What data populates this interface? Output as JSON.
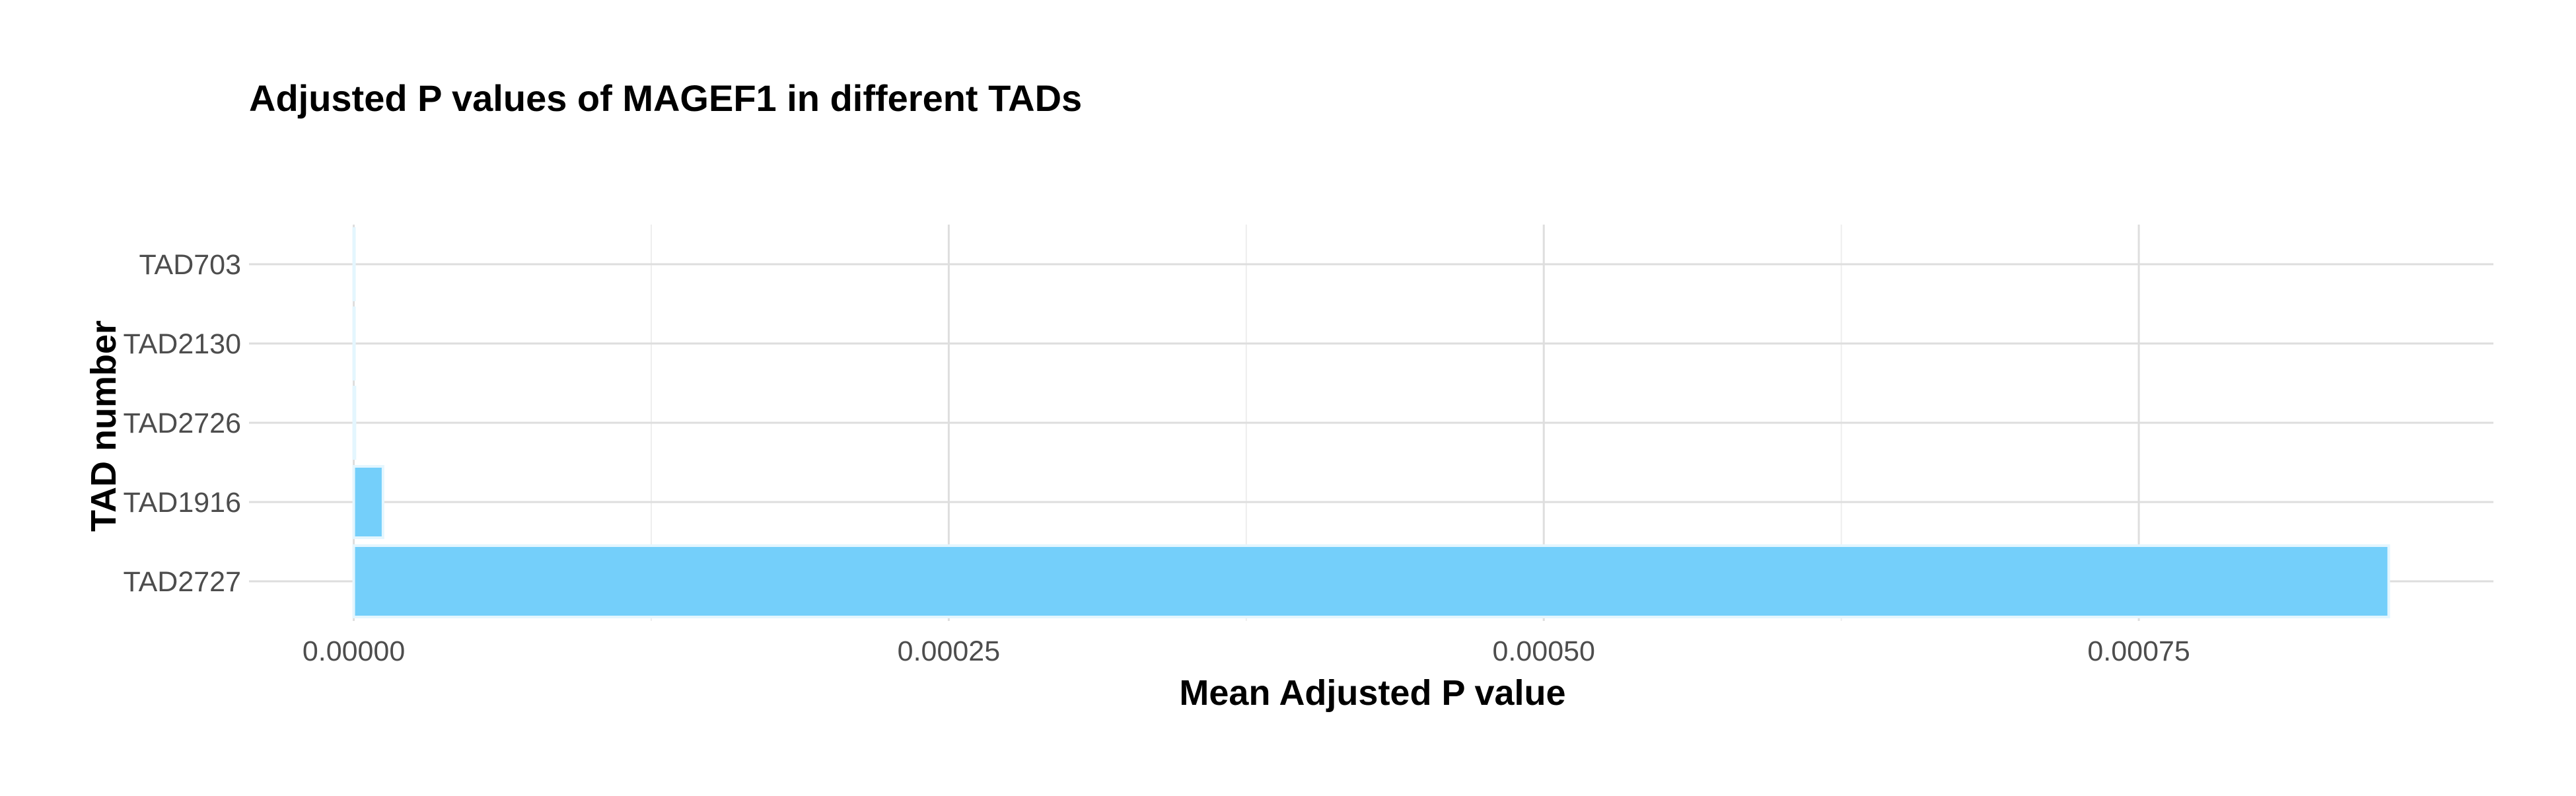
{
  "chart_data": {
    "type": "bar",
    "orientation": "horizontal",
    "title": "Adjusted P values of MAGEF1 in different TADs",
    "xlabel": "Mean Adjusted P value",
    "ylabel": "TAD number",
    "categories": [
      "TAD703",
      "TAD2130",
      "TAD2726",
      "TAD1916",
      "TAD2727"
    ],
    "values": [
      2e-07,
      2e-07,
      5e-07,
      1.23e-05,
      0.000855
    ],
    "xlim": [
      -4.4e-05,
      0.000899
    ],
    "x_ticks": [
      0,
      0.00025,
      0.0005,
      0.00075
    ],
    "x_tick_labels": [
      "0.00000",
      "0.00025",
      "0.00050",
      "0.00075"
    ],
    "grid": true,
    "bar_color": "#74CFFA",
    "bar_outline_color": "#E4F6FE",
    "grid_major_color": "#DEDEDE",
    "grid_minor_color": "#EEEEEE",
    "text_color": "#4D4D4D",
    "title_color": "#000000"
  }
}
